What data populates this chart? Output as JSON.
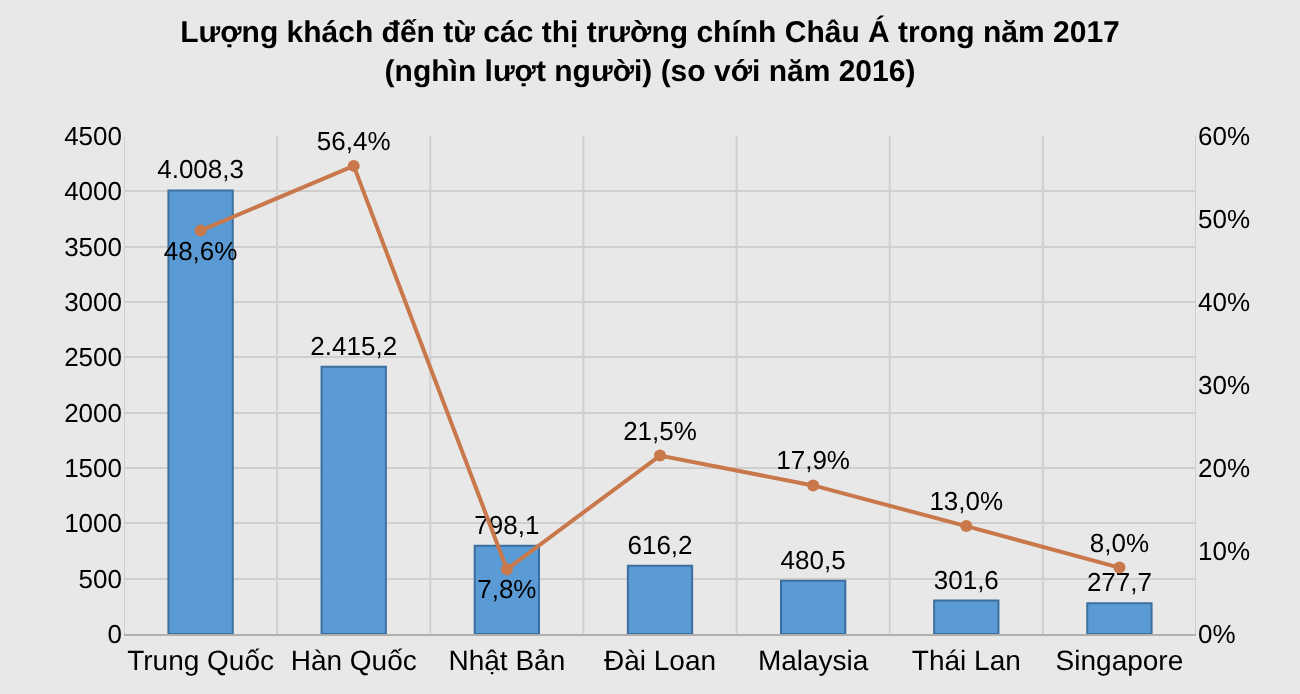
{
  "chart_data": {
    "type": "bar",
    "title": "Lượng khách đến từ các thị trường chính Châu Á trong năm 2017\n(nghìn lượt người) (so với năm 2016)",
    "categories": [
      "Trung Quốc",
      "Hàn Quốc",
      "Nhật Bản",
      "Đài Loan",
      "Malaysia",
      "Thái Lan",
      "Singapore"
    ],
    "series": [
      {
        "color": "#5b9bd5",
        "values": [
          4008.3,
          2415.2,
          798.1,
          616.2,
          480.5,
          301.6,
          277.7
        ],
        "value_labels": [
          "4.008,3",
          "2.415,2",
          "798,1",
          "616,2",
          "480,5",
          "301,6",
          "277,7"
        ]
      },
      {
        "type": "line",
        "axis": "y2",
        "color": "#c8784a",
        "values": [
          48.6,
          56.4,
          7.8,
          21.5,
          17.9,
          13.0,
          8.0
        ],
        "value_labels": [
          "48,6%",
          "56,4%",
          "7,8%",
          "21,5%",
          "17,9%",
          "13,0%",
          "8,0%"
        ]
      }
    ],
    "ylim": [
      0,
      4500
    ],
    "yticks": [
      0,
      500,
      1000,
      1500,
      2000,
      2500,
      3000,
      3500,
      4000,
      4500
    ],
    "y2lim": [
      0,
      60
    ],
    "y2ticks": [
      {
        "value": 0,
        "label": "0%"
      },
      {
        "value": 10,
        "label": "10%"
      },
      {
        "value": 20,
        "label": "20%"
      },
      {
        "value": 30,
        "label": "30%"
      },
      {
        "value": 40,
        "label": "40%"
      },
      {
        "value": 50,
        "label": "50%"
      },
      {
        "value": 60,
        "label": "60%"
      }
    ],
    "grid": true,
    "legend": false,
    "marker": "circle"
  }
}
